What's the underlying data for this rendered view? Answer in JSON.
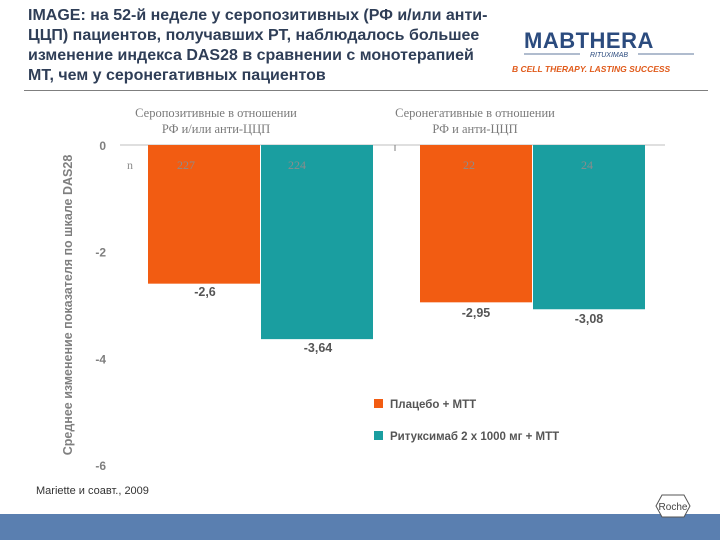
{
  "slide": {
    "title": "IMAGE: на 52-й неделе у серопозитивных (РФ и/или анти-ЦЦП) пациентов, получавших РТ, наблюдалось большее изменение индекса DAS28 в сравнении с монотерапией МТ, чем у серонегативных пациентов",
    "source": "Mariette и соавт., 2009"
  },
  "logo": {
    "brand": "MABTHERA",
    "brand_sub": "RITUXIMAB",
    "tagline": "B CELL THERAPY. LASTING SUCCESS",
    "company": "Roche"
  },
  "colors": {
    "placebo": "#f25c12",
    "rituximab": "#1a9ea0",
    "title": "#2f3e57",
    "footer": "#5a7fb0",
    "brand": "#2b4b7e",
    "accent": "#e05a1a"
  },
  "chart_data": {
    "type": "bar",
    "ylabel": "Среднее изменение показателя по шкале DAS28",
    "ylim": [
      -6,
      0
    ],
    "yticks": [
      0,
      -2,
      -4,
      -6
    ],
    "n_label": "n",
    "groups": [
      {
        "name": "Серопозитивные в отношении РФ и/или анти-ЦЦП"
      },
      {
        "name": "Серонегативные в отношении РФ и анти-ЦЦП"
      }
    ],
    "series": [
      {
        "name": "Плацебо + МТТ",
        "color": "#f25c12",
        "values": [
          -2.6,
          -2.95
        ],
        "labels": [
          "-2,6",
          "-2,95"
        ],
        "n": [
          "227",
          "22"
        ]
      },
      {
        "name": "Ритуксимаб 2 x 1000 мг + МТТ",
        "color": "#1a9ea0",
        "values": [
          -3.64,
          -3.08
        ],
        "labels": [
          "-3,64",
          "-3,08"
        ],
        "n": [
          "224",
          "24"
        ]
      }
    ]
  }
}
